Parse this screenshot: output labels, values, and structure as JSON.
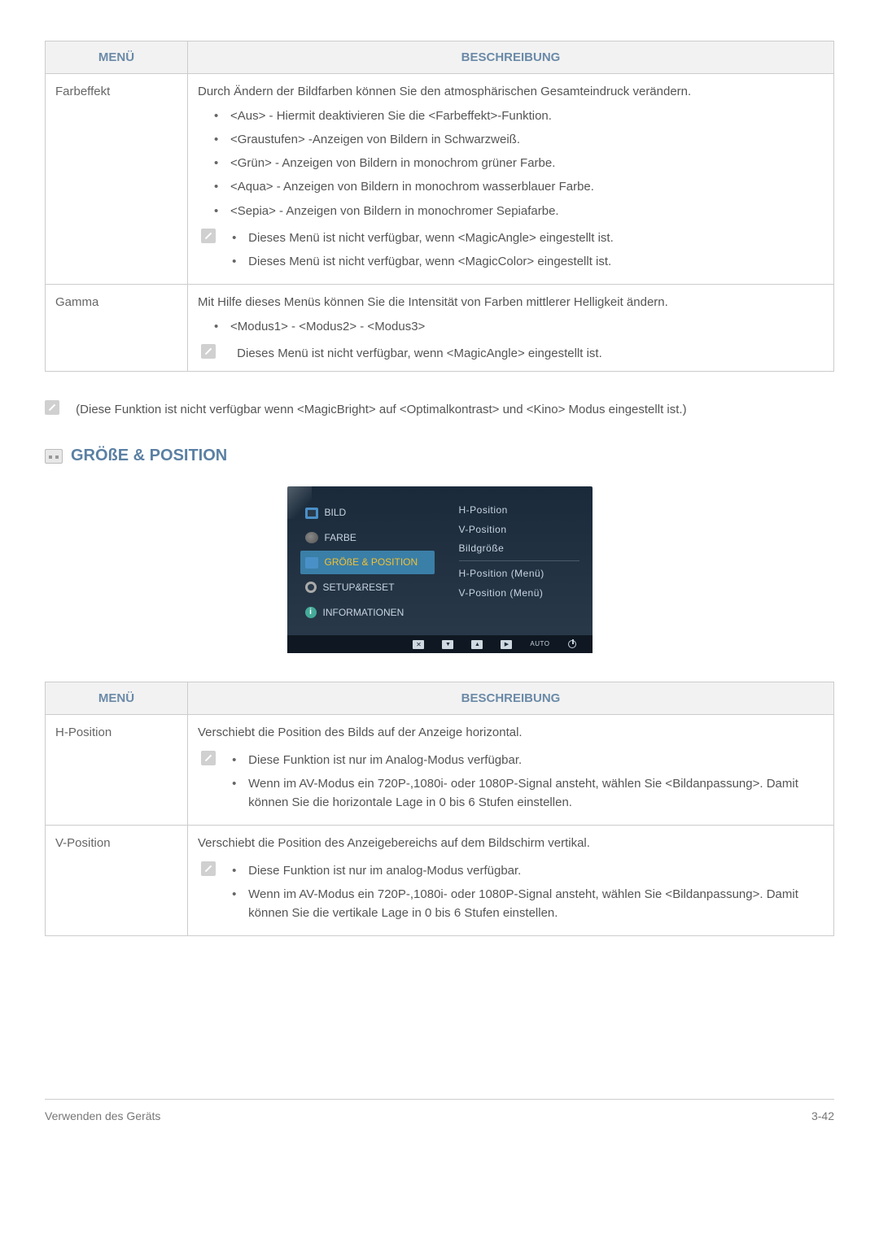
{
  "table1": {
    "header_menu": "MENÜ",
    "header_desc": "BESCHREIBUNG",
    "rows": [
      {
        "menu": "Farbeffekt",
        "intro": "Durch Ändern der Bildfarben können Sie den atmosphärischen Gesamteindruck verändern.",
        "bullets": [
          "<Aus> - Hiermit deaktivieren Sie die <Farbeffekt>-Funktion.",
          "<Graustufen> -Anzeigen von Bildern in Schwarzweiß.",
          "<Grün> - Anzeigen von Bildern in monochrom grüner Farbe.",
          "<Aqua> - Anzeigen von Bildern in monochrom wasserblauer Farbe.",
          "<Sepia> - Anzeigen von Bildern in monochromer Sepiafarbe."
        ],
        "notes": [
          "Dieses Menü ist nicht verfügbar, wenn <MagicAngle> eingestellt ist.",
          "Dieses Menü ist nicht verfügbar, wenn <MagicColor> eingestellt ist."
        ]
      },
      {
        "menu": "Gamma",
        "intro": "Mit Hilfe dieses Menüs können Sie die Intensität von Farben mittlerer Helligkeit ändern.",
        "bullets": [
          "<Modus1> - <Modus2> - <Modus3>"
        ],
        "single_note": "Dieses Menü ist nicht verfügbar, wenn <MagicAngle> eingestellt ist."
      }
    ]
  },
  "mid_note": "(Diese Funktion ist nicht verfügbar wenn <MagicBright> auf <Optimalkontrast> und <Kino> Modus eingestellt ist.)",
  "section_title": "GRÖßE & POSITION",
  "osd": {
    "left": [
      "BILD",
      "FARBE",
      "GRÖßE & POSITION",
      "SETUP&RESET",
      "INFORMATIONEN"
    ],
    "right_top": [
      "H-Position",
      "V-Position",
      "Bildgröße"
    ],
    "right_bottom": [
      "H-Position (Menü)",
      "V-Position (Menü)"
    ],
    "auto": "AUTO"
  },
  "table2": {
    "header_menu": "MENÜ",
    "header_desc": "BESCHREIBUNG",
    "rows": [
      {
        "menu": "H-Position",
        "intro": "Verschiebt die Position des Bilds auf der Anzeige horizontal.",
        "notes": [
          "Diese Funktion ist nur im Analog-Modus verfügbar.",
          "Wenn im AV-Modus ein 720P-,1080i- oder 1080P-Signal ansteht, wählen Sie <Bildanpassung>. Damit können Sie die horizontale Lage in 0 bis 6 Stufen einstellen."
        ]
      },
      {
        "menu": "V-Position",
        "intro": "Verschiebt die Position des Anzeigebereichs auf dem Bildschirm vertikal.",
        "notes": [
          "Diese Funktion ist nur im analog-Modus verfügbar.",
          "Wenn im AV-Modus ein 720P-,1080i- oder 1080P-Signal ansteht, wählen Sie <Bildanpassung>. Damit können Sie die vertikale Lage in 0 bis 6 Stufen einstellen."
        ]
      }
    ]
  },
  "footer_left": "Verwenden des Geräts",
  "footer_right": "3-42"
}
